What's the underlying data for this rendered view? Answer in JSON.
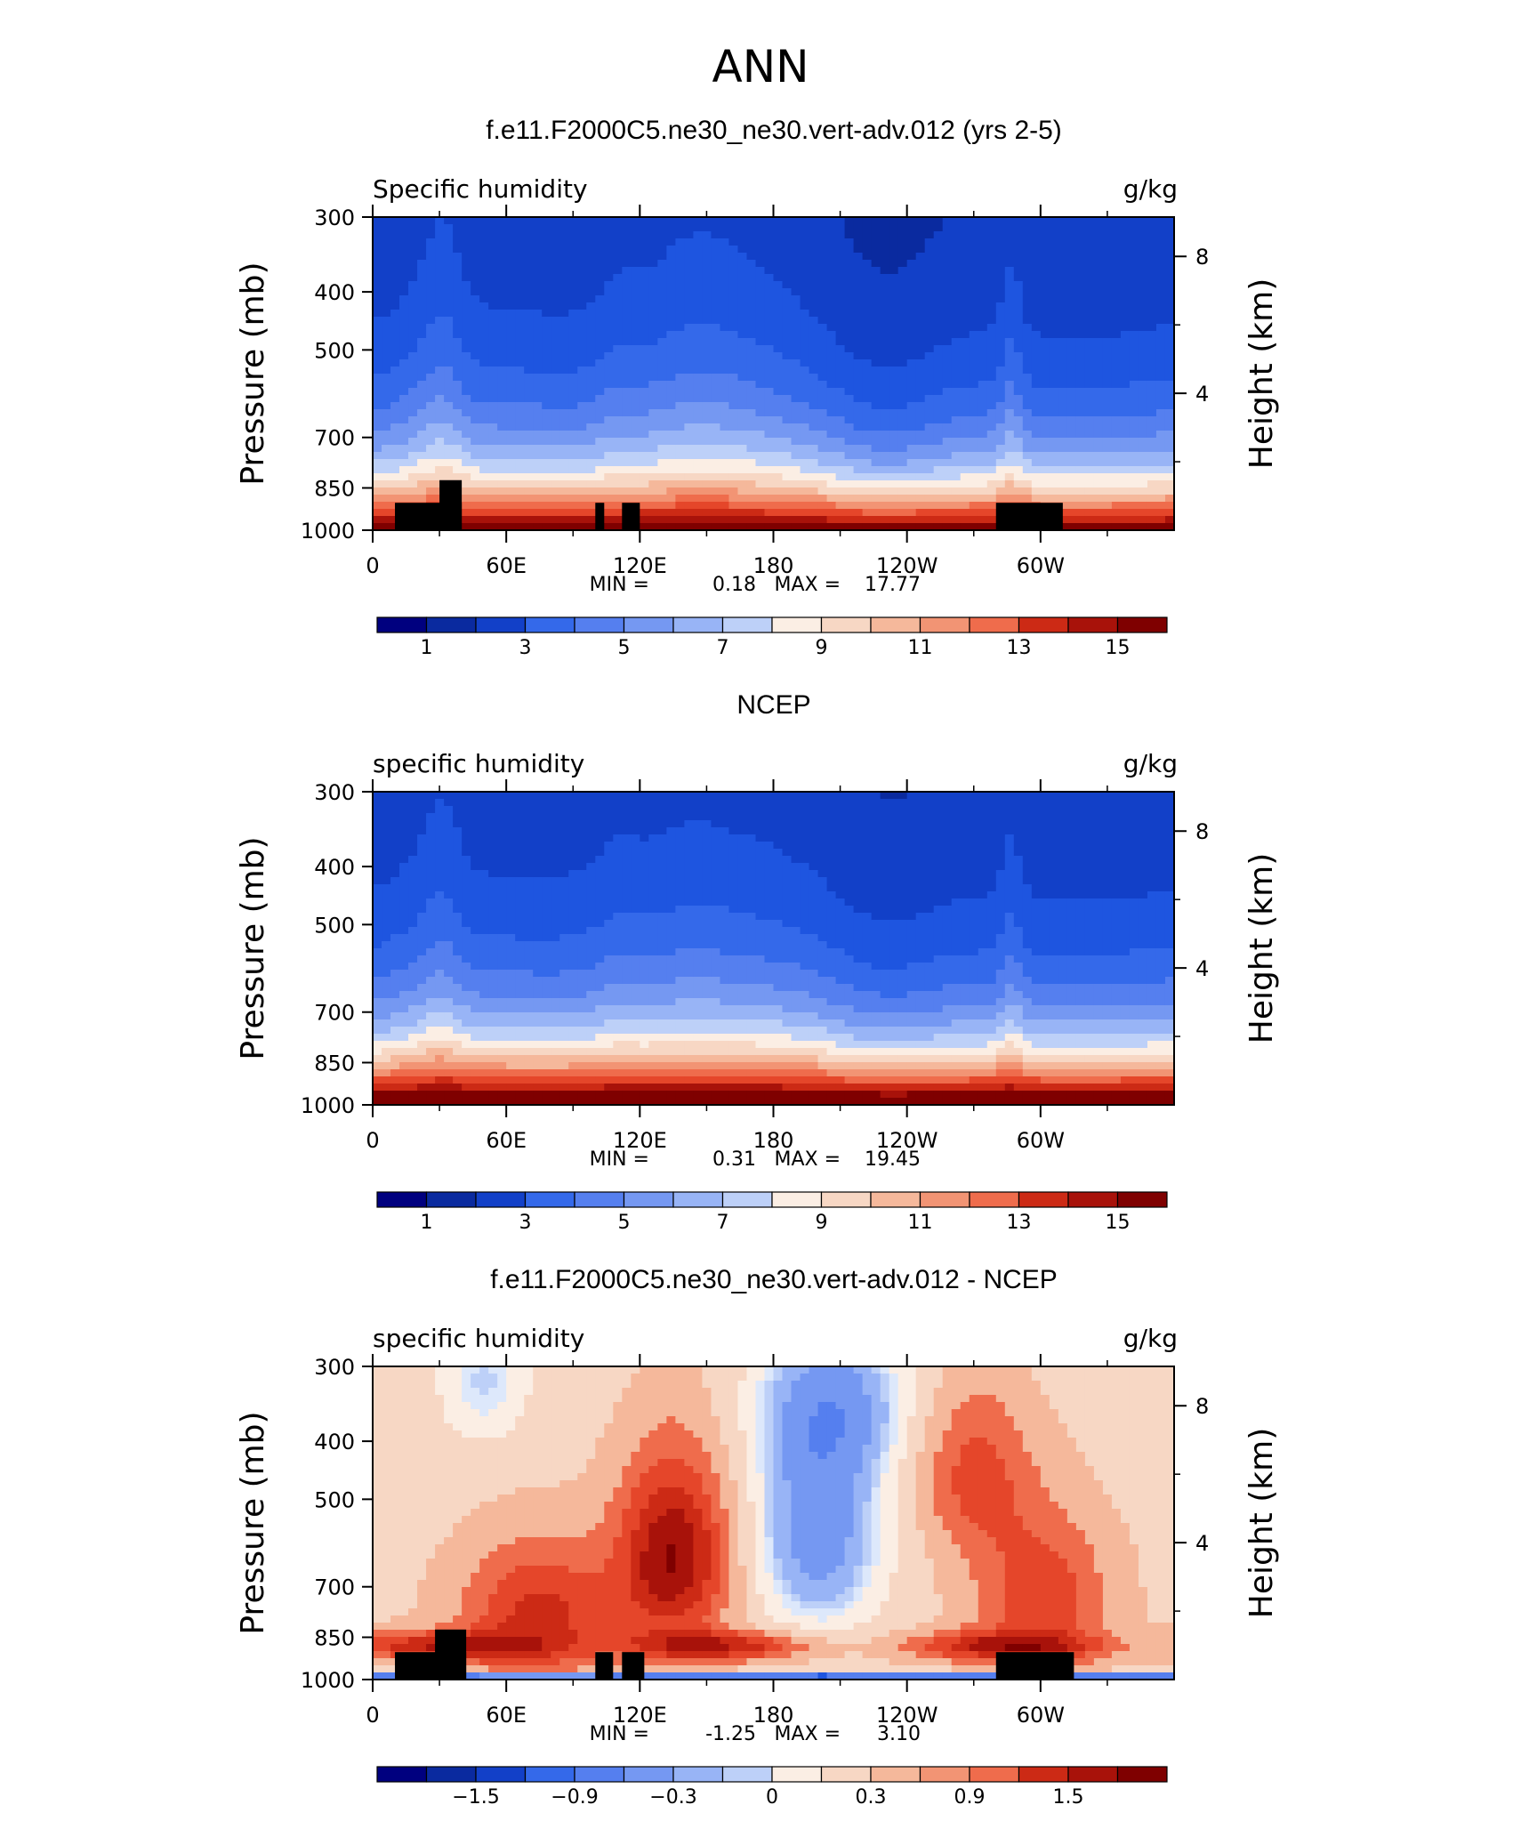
{
  "page_title": "ANN",
  "chart_data": [
    {
      "type": "heatmap",
      "title": "f.e11.F2000C5.ne30_ne30.vert-adv.012 (yrs 2-5)",
      "left_label": "Specific humidity",
      "right_label": "g/kg",
      "ylabel": "Pressure (mb)",
      "ylabel_right": "Height (km)",
      "xticks": [
        "0",
        "60E",
        "120E",
        "180",
        "120W",
        "60W"
      ],
      "xtick_values": [
        0,
        60,
        120,
        180,
        240,
        300
      ],
      "xlim": [
        0,
        360
      ],
      "yticks": [
        "300",
        "400",
        "500",
        "700",
        "850",
        "1000"
      ],
      "ytick_values": [
        300,
        400,
        500,
        700,
        850,
        1000
      ],
      "ylim": [
        1000,
        300
      ],
      "yscale": "log",
      "height_ticks": [
        "8",
        "4"
      ],
      "height_tick_values": [
        8,
        4
      ],
      "min_label": "MIN =",
      "min_value": "0.18",
      "max_label": "MAX =",
      "max_value": "17.77",
      "colorbar_labels": [
        "1",
        "3",
        "5",
        "7",
        "9",
        "11",
        "13",
        "15"
      ],
      "levels": [
        0.5,
        1,
        2,
        3,
        4,
        5,
        6,
        7,
        8,
        9,
        10,
        11,
        12,
        13,
        14,
        15,
        16
      ],
      "min": 0.18,
      "max": 17.77,
      "masked_terrain": [
        [
          10,
          40,
          925
        ],
        [
          30,
          40,
          850
        ],
        [
          100,
          104,
          925
        ],
        [
          112,
          120,
          925
        ],
        [
          280,
          310,
          925
        ]
      ]
    },
    {
      "type": "heatmap",
      "title": "NCEP",
      "left_label": "specific humidity",
      "right_label": "g/kg",
      "ylabel": "Pressure (mb)",
      "ylabel_right": "Height (km)",
      "xticks": [
        "0",
        "60E",
        "120E",
        "180",
        "120W",
        "60W"
      ],
      "xtick_values": [
        0,
        60,
        120,
        180,
        240,
        300
      ],
      "xlim": [
        0,
        360
      ],
      "yticks": [
        "300",
        "400",
        "500",
        "700",
        "850",
        "1000"
      ],
      "ytick_values": [
        300,
        400,
        500,
        700,
        850,
        1000
      ],
      "ylim": [
        1000,
        300
      ],
      "yscale": "log",
      "height_ticks": [
        "8",
        "4"
      ],
      "height_tick_values": [
        8,
        4
      ],
      "min_label": "MIN =",
      "min_value": "0.31",
      "max_label": "MAX =",
      "max_value": "19.45",
      "colorbar_labels": [
        "1",
        "3",
        "5",
        "7",
        "9",
        "11",
        "13",
        "15"
      ],
      "levels": [
        0.5,
        1,
        2,
        3,
        4,
        5,
        6,
        7,
        8,
        9,
        10,
        11,
        12,
        13,
        14,
        15,
        16
      ],
      "min": 0.31,
      "max": 19.45,
      "masked_terrain": []
    },
    {
      "type": "heatmap",
      "title": "f.e11.F2000C5.ne30_ne30.vert-adv.012 - NCEP",
      "left_label": "specific humidity",
      "right_label": "g/kg",
      "ylabel": "Pressure (mb)",
      "ylabel_right": "Height (km)",
      "xticks": [
        "0",
        "60E",
        "120E",
        "180",
        "120W",
        "60W"
      ],
      "xtick_values": [
        0,
        60,
        120,
        180,
        240,
        300
      ],
      "xlim": [
        0,
        360
      ],
      "yticks": [
        "300",
        "400",
        "500",
        "700",
        "850",
        "1000"
      ],
      "ytick_values": [
        300,
        400,
        500,
        700,
        850,
        1000
      ],
      "ylim": [
        1000,
        300
      ],
      "yscale": "log",
      "height_ticks": [
        "8",
        "4"
      ],
      "height_tick_values": [
        8,
        4
      ],
      "min_label": "MIN =",
      "min_value": "-1.25",
      "max_label": "MAX =",
      "max_value": "3.10",
      "colorbar_labels": [
        "−1.5",
        "−0.9",
        "−0.3",
        "0",
        "0.3",
        "0.9",
        "1.5"
      ],
      "levels": [
        -1.8,
        -1.5,
        -1.2,
        -0.9,
        -0.6,
        -0.3,
        -0.1,
        0,
        0.1,
        0.3,
        0.6,
        0.9,
        1.2,
        1.5,
        1.8,
        2.1
      ],
      "min": -1.25,
      "max": 3.1,
      "masked_terrain": [
        [
          10,
          42,
          925
        ],
        [
          28,
          42,
          850
        ],
        [
          100,
          108,
          925
        ],
        [
          112,
          122,
          925
        ],
        [
          280,
          315,
          925
        ]
      ]
    }
  ],
  "colors": {
    "palette": [
      "#00007f",
      "#0a2a9f",
      "#1240c8",
      "#1e55e0",
      "#3469ea",
      "#557fef",
      "#7598f2",
      "#98b4f6",
      "#bdd0f8",
      "#dde8fb",
      "#fbeee4",
      "#f7d7c4",
      "#f5b89b",
      "#f29474",
      "#ef6c4c",
      "#e5462a",
      "#cc2a15",
      "#a8120a",
      "#7f0000"
    ],
    "mask": "#000000"
  }
}
